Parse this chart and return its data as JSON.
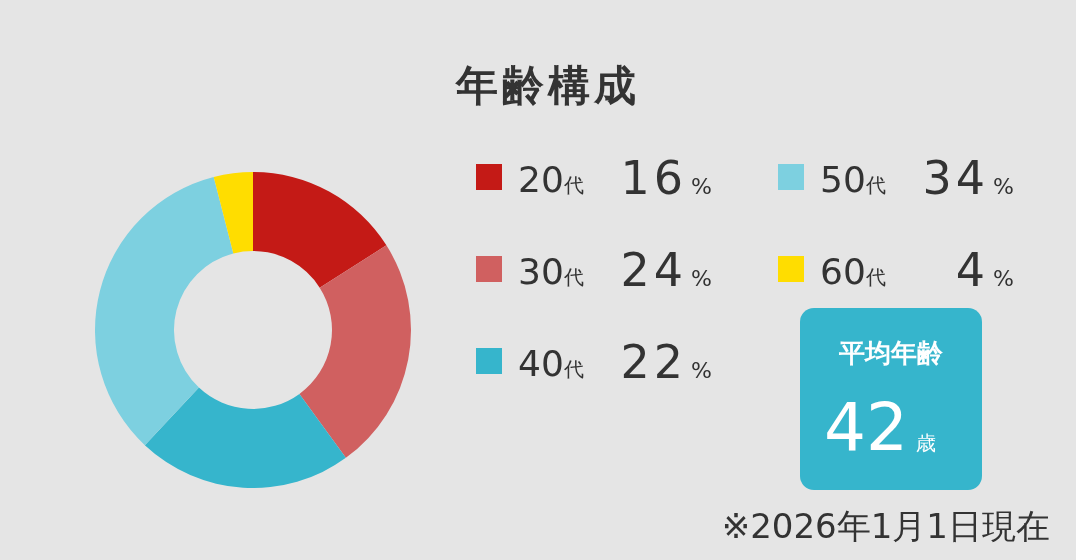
{
  "chart_data": {
    "type": "donut",
    "title": "年齢構成",
    "categories": [
      "20代",
      "30代",
      "40代",
      "50代",
      "60代"
    ],
    "values": [
      16,
      24,
      22,
      34,
      4
    ],
    "colors": [
      "#c41a16",
      "#d06060",
      "#36b5cc",
      "#7dd0e0",
      "#ffdd00"
    ],
    "value_labels": [
      "16%",
      "24%",
      "22%",
      "34%",
      "4%"
    ],
    "legend": "right",
    "annotations": [
      "平均年齢",
      "42歳",
      "※2026年1月1日現在"
    ]
  }
}
